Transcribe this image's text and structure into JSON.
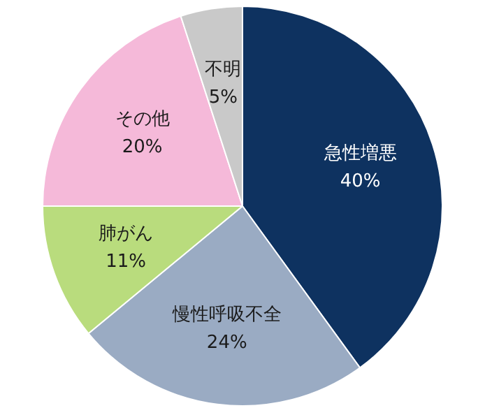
{
  "chart_data": {
    "type": "pie",
    "categories": [
      "急性増悪",
      "慢性呼吸不全",
      "肺がん",
      "その他",
      "不明"
    ],
    "values": [
      40,
      24,
      11,
      20,
      5
    ],
    "colors": [
      "#0e3260",
      "#9aabc3",
      "#b9dc7d",
      "#f5b9d9",
      "#c9c9c9"
    ],
    "value_labels": [
      "40%",
      "24%",
      "11%",
      "20%",
      "5%"
    ],
    "legend": false
  }
}
